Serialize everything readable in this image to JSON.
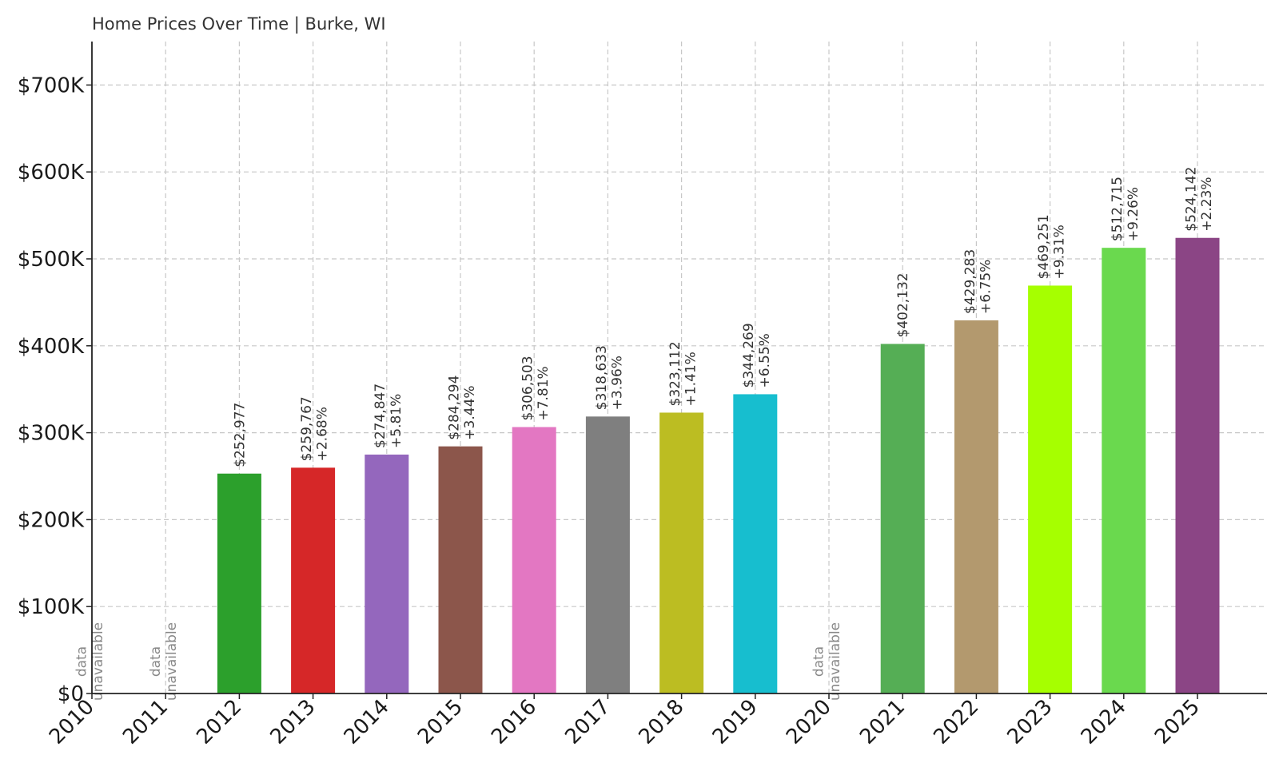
{
  "chart_data": {
    "type": "bar",
    "title": "Home Prices Over Time | Burke, WI",
    "xlabel": "",
    "ylabel": "",
    "categories": [
      "2010",
      "2011",
      "2012",
      "2013",
      "2014",
      "2015",
      "2016",
      "2017",
      "2018",
      "2019",
      "2020",
      "2021",
      "2022",
      "2023",
      "2024",
      "2025"
    ],
    "values": [
      null,
      null,
      252977,
      259767,
      274847,
      284294,
      306503,
      318633,
      323112,
      344269,
      null,
      402132,
      429283,
      469251,
      512715,
      524142
    ],
    "value_labels": [
      "",
      "",
      "$252,977",
      "$259,767",
      "$274,847",
      "$284,294",
      "$306,503",
      "$318,633",
      "$323,112",
      "$344,269",
      "",
      "$402,132",
      "$429,283",
      "$469,251",
      "$512,715",
      "$524,142"
    ],
    "change_labels": [
      "",
      "",
      "",
      "+2.68%",
      "+5.81%",
      "+3.44%",
      "+7.81%",
      "+3.96%",
      "+1.41%",
      "+6.55%",
      "",
      "",
      "+6.75%",
      "+9.31%",
      "+9.26%",
      "+2.23%"
    ],
    "unavailable_label": [
      "data",
      "unavailable"
    ],
    "colors": [
      "",
      "",
      "#2ca02c",
      "#d62728",
      "#9467bd",
      "#8c564b",
      "#e377c2",
      "#7f7f7f",
      "#bcbd22",
      "#17becf",
      "",
      "#55ae55",
      "#b3996e",
      "#a6ff00",
      "#6ad94e",
      "#8b4585"
    ],
    "ylim": [
      0,
      750000
    ],
    "yticks": [
      0,
      100000,
      200000,
      300000,
      400000,
      500000,
      600000,
      700000
    ],
    "ytick_labels": [
      "$0",
      "$100K",
      "$200K",
      "$300K",
      "$400K",
      "$500K",
      "$600K",
      "$700K"
    ],
    "grid": true,
    "legend": "none"
  }
}
